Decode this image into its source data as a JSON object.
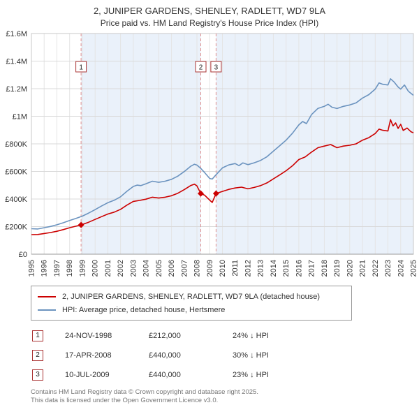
{
  "title": "2, JUNIPER GARDENS, SHENLEY, RADLETT, WD7 9LA",
  "subtitle": "Price paid vs. HM Land Registry's House Price Index (HPI)",
  "legend": {
    "series1": "2, JUNIPER GARDENS, SHENLEY, RADLETT, WD7 9LA (detached house)",
    "series2": "HPI: Average price, detached house, Hertsmere"
  },
  "sales": [
    {
      "num": "1",
      "date": "24-NOV-1998",
      "price": "£212,000",
      "delta": "24% ↓ HPI"
    },
    {
      "num": "2",
      "date": "17-APR-2008",
      "price": "£440,000",
      "delta": "30% ↓ HPI"
    },
    {
      "num": "3",
      "date": "10-JUL-2009",
      "price": "£440,000",
      "delta": "23% ↓ HPI"
    }
  ],
  "footer": {
    "line1": "Contains HM Land Registry data © Crown copyright and database right 2025.",
    "line2": "This data is licensed under the Open Government Licence v3.0."
  },
  "colors": {
    "price_paid": "#cc0000",
    "hpi": "#6b93bf",
    "ownership_band": "#eaf1fa",
    "hgrid": "#d9d9d9",
    "vgrid": "#e4e4e4",
    "plot_border": "#c8c8c8",
    "axis": "#999999",
    "dashed_sale_line": "#e09090",
    "sale_box_border": "#aa3333",
    "tick_text": "#333333"
  },
  "chart_data": {
    "type": "line",
    "title": "2, JUNIPER GARDENS, SHENLEY, RADLETT, WD7 9LA",
    "subtitle": "Price paid vs. HM Land Registry's House Price Index (HPI)",
    "xlabel": "",
    "ylabel": "",
    "units": "GBP_thousands",
    "x_range": [
      1995,
      2025
    ],
    "y_range": [
      0,
      1600
    ],
    "grid": true,
    "legend_position": "bottom",
    "y_ticks": [
      {
        "v": 0,
        "label": "£0"
      },
      {
        "v": 200,
        "label": "£200K"
      },
      {
        "v": 400,
        "label": "£400K"
      },
      {
        "v": 600,
        "label": "£600K"
      },
      {
        "v": 800,
        "label": "£800K"
      },
      {
        "v": 1000,
        "label": "£1M"
      },
      {
        "v": 1200,
        "label": "£1.2M"
      },
      {
        "v": 1400,
        "label": "£1.4M"
      },
      {
        "v": 1600,
        "label": "£1.6M"
      }
    ],
    "x_ticks": [
      1995,
      1996,
      1997,
      1998,
      1999,
      2000,
      2001,
      2002,
      2003,
      2004,
      2005,
      2006,
      2007,
      2008,
      2009,
      2010,
      2011,
      2012,
      2013,
      2014,
      2015,
      2016,
      2017,
      2018,
      2019,
      2020,
      2021,
      2022,
      2023,
      2024,
      2025
    ],
    "ownership_bands": [
      [
        1998.9,
        2008.3
      ],
      [
        2009.5,
        2025
      ]
    ],
    "sale_markers": [
      {
        "n": "1",
        "x": 1998.9,
        "y": 212
      },
      {
        "n": "2",
        "x": 2008.3,
        "y": 440
      },
      {
        "n": "3",
        "x": 2009.5,
        "y": 440
      }
    ],
    "series": [
      {
        "name": "price-paid",
        "label": "2, JUNIPER GARDENS, SHENLEY, RADLETT, WD7 9LA (detached house)",
        "color": "#cc0000",
        "points": [
          [
            1995,
            142
          ],
          [
            1995.5,
            143
          ],
          [
            1996,
            150
          ],
          [
            1996.5,
            157
          ],
          [
            1997,
            166
          ],
          [
            1997.5,
            178
          ],
          [
            1998,
            192
          ],
          [
            1998.5,
            203
          ],
          [
            1998.9,
            212
          ],
          [
            1999.5,
            232
          ],
          [
            2000,
            252
          ],
          [
            2000.5,
            272
          ],
          [
            2001,
            291
          ],
          [
            2001.5,
            305
          ],
          [
            2002,
            325
          ],
          [
            2002.5,
            356
          ],
          [
            2003,
            383
          ],
          [
            2003.5,
            390
          ],
          [
            2004,
            399
          ],
          [
            2004.5,
            413
          ],
          [
            2005,
            407
          ],
          [
            2005.5,
            413
          ],
          [
            2006,
            424
          ],
          [
            2006.5,
            442
          ],
          [
            2007,
            468
          ],
          [
            2007.5,
            497
          ],
          [
            2007.8,
            508
          ],
          [
            2008,
            495
          ],
          [
            2008.3,
            440
          ],
          [
            2008.6,
            428
          ],
          [
            2009,
            392
          ],
          [
            2009.2,
            375
          ],
          [
            2009.5,
            440
          ],
          [
            2010,
            455
          ],
          [
            2010.5,
            470
          ],
          [
            2011,
            480
          ],
          [
            2011.5,
            486
          ],
          [
            2012,
            474
          ],
          [
            2012.5,
            484
          ],
          [
            2013,
            497
          ],
          [
            2013.5,
            517
          ],
          [
            2014,
            546
          ],
          [
            2014.5,
            575
          ],
          [
            2015,
            605
          ],
          [
            2015.5,
            641
          ],
          [
            2016,
            686
          ],
          [
            2016.5,
            705
          ],
          [
            2017,
            740
          ],
          [
            2017.5,
            772
          ],
          [
            2018,
            784
          ],
          [
            2018.5,
            795
          ],
          [
            2019,
            772
          ],
          [
            2019.5,
            784
          ],
          [
            2020,
            790
          ],
          [
            2020.5,
            800
          ],
          [
            2021,
            827
          ],
          [
            2021.5,
            845
          ],
          [
            2022,
            875
          ],
          [
            2022.3,
            907
          ],
          [
            2022.6,
            898
          ],
          [
            2023,
            893
          ],
          [
            2023.2,
            975
          ],
          [
            2023.4,
            930
          ],
          [
            2023.6,
            952
          ],
          [
            2023.8,
            912
          ],
          [
            2024,
            942
          ],
          [
            2024.2,
            897
          ],
          [
            2024.5,
            915
          ],
          [
            2024.8,
            888
          ],
          [
            2025,
            880
          ]
        ]
      },
      {
        "name": "hpi",
        "label": "HPI: Average price, detached house, Hertsmere",
        "color": "#6b93bf",
        "points": [
          [
            1995,
            185
          ],
          [
            1995.5,
            183
          ],
          [
            1996,
            192
          ],
          [
            1996.5,
            201
          ],
          [
            1997,
            213
          ],
          [
            1997.5,
            228
          ],
          [
            1998,
            244
          ],
          [
            1998.5,
            259
          ],
          [
            1999,
            276
          ],
          [
            1999.5,
            298
          ],
          [
            2000,
            323
          ],
          [
            2000.5,
            349
          ],
          [
            2001,
            373
          ],
          [
            2001.5,
            391
          ],
          [
            2002,
            416
          ],
          [
            2002.5,
            456
          ],
          [
            2003,
            491
          ],
          [
            2003.3,
            501
          ],
          [
            2003.6,
            497
          ],
          [
            2004,
            511
          ],
          [
            2004.5,
            529
          ],
          [
            2005,
            521
          ],
          [
            2005.5,
            529
          ],
          [
            2006,
            543
          ],
          [
            2006.5,
            566
          ],
          [
            2007,
            599
          ],
          [
            2007.5,
            637
          ],
          [
            2007.8,
            652
          ],
          [
            2008,
            646
          ],
          [
            2008.3,
            622
          ],
          [
            2008.6,
            592
          ],
          [
            2009,
            549
          ],
          [
            2009.2,
            545
          ],
          [
            2009.5,
            576
          ],
          [
            2010,
            626
          ],
          [
            2010.5,
            647
          ],
          [
            2011,
            657
          ],
          [
            2011.3,
            642
          ],
          [
            2011.6,
            662
          ],
          [
            2012,
            649
          ],
          [
            2012.5,
            663
          ],
          [
            2013,
            680
          ],
          [
            2013.5,
            707
          ],
          [
            2014,
            747
          ],
          [
            2014.5,
            787
          ],
          [
            2015,
            827
          ],
          [
            2015.5,
            877
          ],
          [
            2016,
            937
          ],
          [
            2016.3,
            962
          ],
          [
            2016.6,
            947
          ],
          [
            2017,
            1012
          ],
          [
            2017.5,
            1057
          ],
          [
            2018,
            1072
          ],
          [
            2018.3,
            1087
          ],
          [
            2018.6,
            1066
          ],
          [
            2019,
            1056
          ],
          [
            2019.5,
            1072
          ],
          [
            2020,
            1082
          ],
          [
            2020.5,
            1097
          ],
          [
            2021,
            1132
          ],
          [
            2021.5,
            1157
          ],
          [
            2022,
            1197
          ],
          [
            2022.3,
            1242
          ],
          [
            2022.6,
            1232
          ],
          [
            2023,
            1227
          ],
          [
            2023.2,
            1272
          ],
          [
            2023.5,
            1247
          ],
          [
            2023.8,
            1212
          ],
          [
            2024,
            1197
          ],
          [
            2024.3,
            1227
          ],
          [
            2024.6,
            1182
          ],
          [
            2025,
            1152
          ]
        ]
      }
    ]
  }
}
